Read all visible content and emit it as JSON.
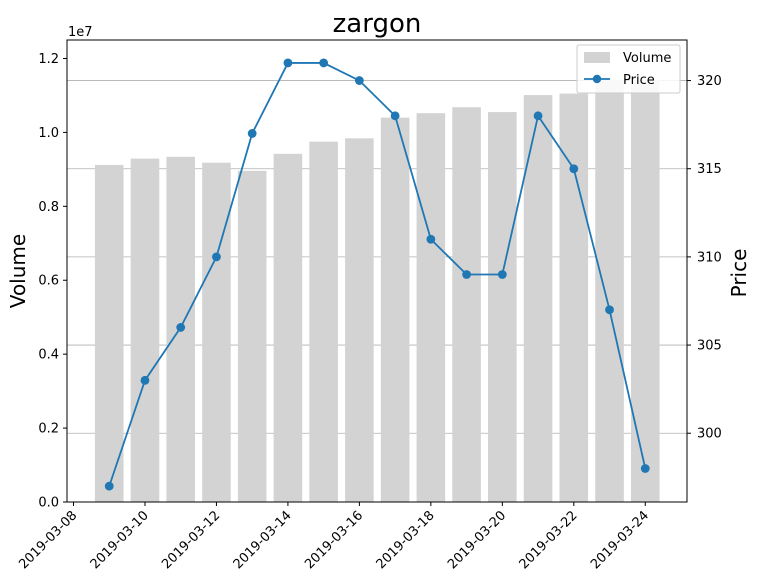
{
  "chart_data": {
    "type": "bar+line",
    "title": "zargon",
    "x": [
      "2019-03-09",
      "2019-03-10",
      "2019-03-11",
      "2019-03-12",
      "2019-03-13",
      "2019-03-14",
      "2019-03-15",
      "2019-03-16",
      "2019-03-17",
      "2019-03-18",
      "2019-03-19",
      "2019-03-20",
      "2019-03-21",
      "2019-03-22",
      "2019-03-23",
      "2019-03-24"
    ],
    "x_ticks": [
      "2019-03-08",
      "2019-03-10",
      "2019-03-12",
      "2019-03-14",
      "2019-03-16",
      "2019-03-18",
      "2019-03-20",
      "2019-03-22",
      "2019-03-24"
    ],
    "x_range": [
      "2019-03-08",
      "2019-03-25"
    ],
    "series": [
      {
        "name": "Volume",
        "type": "bar",
        "axis": "left",
        "color": "#d3d3d3",
        "values": [
          9120000,
          9290000,
          9340000,
          9180000,
          8960000,
          9420000,
          9750000,
          9840000,
          10400000,
          10520000,
          10680000,
          10550000,
          11010000,
          11050000,
          11420000,
          11420000
        ]
      },
      {
        "name": "Price",
        "type": "line",
        "axis": "right",
        "color": "#1f77b4",
        "marker": "circle",
        "values": [
          297,
          303,
          306,
          310,
          317,
          321,
          321,
          320,
          318,
          311,
          309,
          309,
          318,
          315,
          307,
          298
        ]
      }
    ],
    "ylabel": "Volume",
    "y2label": "Price",
    "ylim": [
      0,
      12500000
    ],
    "y_offset_text": "1e7",
    "y_ticks": [
      0,
      2000000,
      4000000,
      6000000,
      8000000,
      10000000,
      12000000
    ],
    "y_tick_labels": [
      "0.0",
      "0.2",
      "0.4",
      "0.6",
      "0.8",
      "1.0",
      "1.2"
    ],
    "y2lim": [
      296.1,
      322.3
    ],
    "y2_ticks": [
      300,
      305,
      310,
      315,
      320
    ],
    "y2_tick_labels": [
      "300",
      "305",
      "310",
      "315",
      "320"
    ],
    "grid": "horizontal lines at right-axis ticks",
    "legend_position": "top-right",
    "legend": [
      {
        "label": "Volume",
        "kind": "patch",
        "color": "#d3d3d3"
      },
      {
        "label": "Price",
        "kind": "line-marker",
        "color": "#1f77b4"
      }
    ]
  }
}
